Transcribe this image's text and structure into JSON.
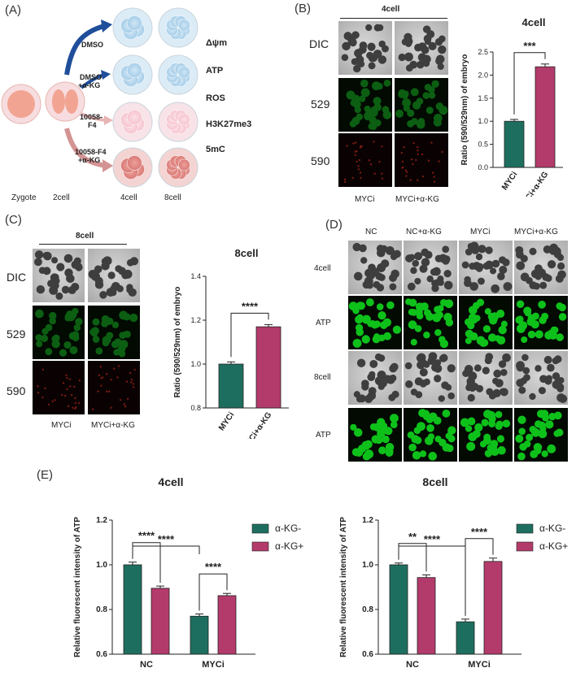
{
  "panelA": {
    "label": "(A)",
    "stages": [
      "Zygote",
      "2cell",
      "4cell",
      "8cell"
    ],
    "treatments": [
      "DMSO",
      "DMSO\n+α-KG",
      "10058-\nF4",
      "10058-F4\n+α-KG"
    ],
    "markers": [
      "Δψm",
      "ATP",
      "ROS",
      "H3K27me3",
      "5mC"
    ]
  },
  "panelB": {
    "label": "(B)",
    "stage": "4cell",
    "rows": [
      "DIC",
      "529",
      "590"
    ],
    "cols": [
      "MYCi",
      "MYCi+α-KG"
    ]
  },
  "panelC": {
    "label": "(C)",
    "stage": "8cell",
    "rows": [
      "DIC",
      "529",
      "590"
    ],
    "cols": [
      "MYCi",
      "MYCi+α-KG"
    ]
  },
  "panelD": {
    "label": "(D)",
    "cols": [
      "NC",
      "NC+α-KG",
      "MYCi",
      "MYCi+α-KG"
    ],
    "rows": [
      "4cell",
      "ATP",
      "8cell",
      "ATP"
    ]
  },
  "panelE": {
    "label": "(E)"
  },
  "colors": {
    "teal": "#1e6e5f",
    "pink": "#b33b6b"
  },
  "chart_data": [
    {
      "id": "B",
      "type": "bar",
      "title": "4cell",
      "ylabel": "Ratio (590/529nm) of embryo",
      "categories": [
        "MYCi",
        "MYCi+α-KG"
      ],
      "values": [
        1.0,
        2.18
      ],
      "errors": [
        0.04,
        0.06
      ],
      "ylim": [
        0.0,
        2.5
      ],
      "yticks": [
        "0.0",
        "0.5",
        "1.0",
        "1.5",
        "2.0",
        "2.5"
      ],
      "significance": "***"
    },
    {
      "id": "C",
      "type": "bar",
      "title": "8cell",
      "ylabel": "Ratio (590/529nm) of embryo",
      "categories": [
        "MYCi",
        "MYCi+α-KG"
      ],
      "values": [
        1.0,
        1.17
      ],
      "errors": [
        0.01,
        0.01
      ],
      "ylim": [
        0.8,
        1.4
      ],
      "yticks": [
        "0.8",
        "1.0",
        "1.2",
        "1.4"
      ],
      "significance": "****"
    },
    {
      "id": "E1",
      "type": "bar",
      "title": "4cell",
      "ylabel": "Relative fluorescent intensity of ATP",
      "categories": [
        "NC",
        "MYCi"
      ],
      "series": [
        {
          "name": "α-KG-",
          "values": [
            1.0,
            0.77
          ],
          "errors": [
            0.012,
            0.01
          ]
        },
        {
          "name": "α-KG+",
          "values": [
            0.895,
            0.862
          ],
          "errors": [
            0.01,
            0.01
          ]
        }
      ],
      "ylim": [
        0.6,
        1.2
      ],
      "yticks": [
        "0.6",
        "0.8",
        "1.0",
        "1.2"
      ],
      "significance": [
        "****",
        "****",
        "****"
      ]
    },
    {
      "id": "E2",
      "type": "bar",
      "title": "8cell",
      "ylabel": "Relative fluorescent intensity of ATP",
      "categories": [
        "NC",
        "MYCi"
      ],
      "series": [
        {
          "name": "α-KG-",
          "values": [
            1.0,
            0.745
          ],
          "errors": [
            0.008,
            0.012
          ]
        },
        {
          "name": "α-KG+",
          "values": [
            0.943,
            1.015
          ],
          "errors": [
            0.012,
            0.015
          ]
        }
      ],
      "ylim": [
        0.6,
        1.2
      ],
      "yticks": [
        "0.6",
        "0.8",
        "1.0",
        "1.2"
      ],
      "significance": [
        "****",
        "**",
        "****"
      ]
    }
  ]
}
